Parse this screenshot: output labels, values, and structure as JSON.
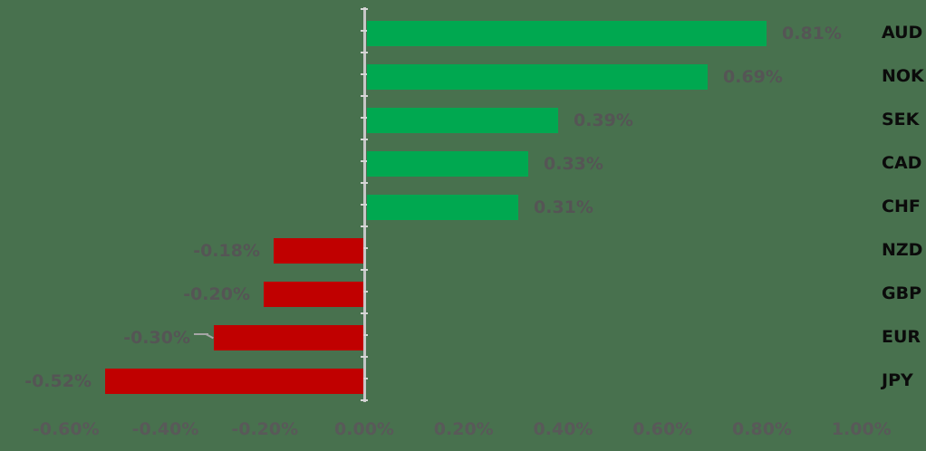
{
  "chart_data": {
    "type": "bar",
    "orientation": "horizontal",
    "title": "",
    "categories": [
      "AUD",
      "NOK",
      "SEK",
      "CAD",
      "CHF",
      "NZD",
      "GBP",
      "EUR",
      "JPY"
    ],
    "values": [
      0.81,
      0.69,
      0.39,
      0.33,
      0.31,
      -0.18,
      -0.2,
      -0.3,
      -0.52
    ],
    "value_labels": [
      "0.81%",
      "0.69%",
      "0.39%",
      "0.33%",
      "0.31%",
      "-0.18%",
      "-0.20%",
      "-0.30%",
      "-0.52%"
    ],
    "x_axis": {
      "tick_labels": [
        "-0.60%",
        "-0.40%",
        "-0.20%",
        "0.00%",
        "0.20%",
        "0.40%",
        "0.60%",
        "0.80%",
        "1.00%"
      ],
      "tick_values": [
        -0.6,
        -0.4,
        -0.2,
        0.0,
        0.2,
        0.4,
        0.6,
        0.8,
        1.0
      ],
      "range": [
        -0.6,
        1.0
      ]
    },
    "grid": false,
    "legend": false,
    "leader_line_category": "EUR"
  },
  "colors": {
    "background": "#48714E",
    "bar_positive": "#00A850",
    "bar_negative": "#C00000",
    "value_label": "#555555",
    "tick_label": "#595959",
    "category_label": "#0B0B0B",
    "axis_line": "#C7C7C7",
    "axis_tick": "#D6D6D6",
    "leader_line": "#A6A6A6"
  }
}
